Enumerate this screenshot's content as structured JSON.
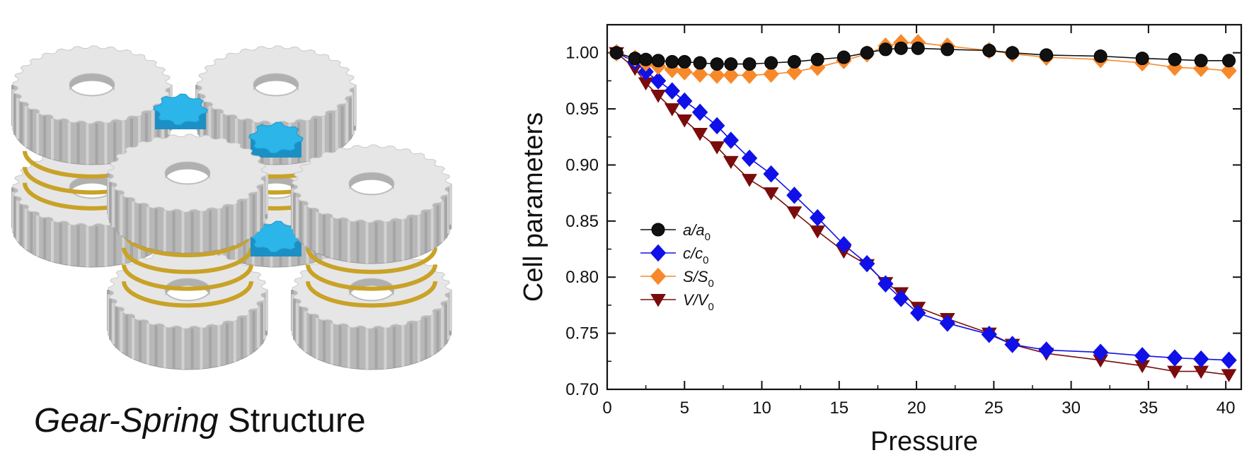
{
  "caption": {
    "italic_part": "Gear-Spring",
    "rest": " Structure"
  },
  "illustration": {
    "description_icon": "gear-spring-illustration-icon",
    "colors": {
      "gear": "#e6e6e6",
      "gear_shade": "#b8b8b8",
      "spring": "#c9a227",
      "connector": "#2bb5e8"
    }
  },
  "chart_data": {
    "type": "line",
    "xlabel": "Pressure",
    "ylabel": "Cell parameters",
    "xlim": [
      0,
      41
    ],
    "ylim": [
      0.7,
      1.025
    ],
    "xticks": [
      0,
      5,
      10,
      15,
      20,
      25,
      30,
      35,
      40
    ],
    "xtick_labels": [
      "0",
      "5",
      "10",
      "15",
      "20",
      "25",
      "30",
      "35",
      "40"
    ],
    "yticks": [
      0.7,
      0.75,
      0.8,
      0.85,
      0.9,
      0.95,
      1.0
    ],
    "ytick_labels": [
      "0.70",
      "0.75",
      "0.80",
      "0.85",
      "0.90",
      "0.95",
      "1.00"
    ],
    "grid": false,
    "legend_position": "left-middle",
    "series": [
      {
        "key": "a",
        "label_main": "a/a",
        "label_sub": "0",
        "color": "#111111",
        "marker": "circle",
        "x": [
          0.6,
          1.8,
          2.5,
          3.3,
          4.2,
          5.0,
          6.0,
          7.1,
          8.0,
          9.2,
          10.6,
          12.1,
          13.6,
          15.3,
          16.8,
          18.0,
          19.0,
          20.1,
          22.0,
          24.7,
          26.2,
          28.4,
          31.9,
          34.6,
          36.7,
          38.4,
          40.2
        ],
        "y": [
          1.0,
          0.995,
          0.994,
          0.993,
          0.992,
          0.992,
          0.991,
          0.99,
          0.99,
          0.99,
          0.991,
          0.992,
          0.994,
          0.996,
          1.0,
          1.003,
          1.004,
          1.004,
          1.003,
          1.002,
          1.0,
          0.998,
          0.997,
          0.995,
          0.994,
          0.993,
          0.993
        ]
      },
      {
        "key": "c",
        "label_main": "c/c",
        "label_sub": "0",
        "color": "#1010e8",
        "marker": "diamond",
        "x": [
          0.6,
          1.8,
          2.5,
          3.3,
          4.2,
          5.0,
          6.0,
          7.1,
          8.0,
          9.2,
          10.6,
          12.1,
          13.6,
          15.3,
          16.8,
          18.0,
          19.0,
          20.1,
          22.0,
          24.7,
          26.2,
          28.4,
          31.9,
          34.6,
          36.7,
          38.4,
          40.2
        ],
        "y": [
          1.0,
          0.992,
          0.983,
          0.975,
          0.966,
          0.957,
          0.947,
          0.935,
          0.922,
          0.906,
          0.892,
          0.873,
          0.853,
          0.829,
          0.812,
          0.794,
          0.781,
          0.768,
          0.759,
          0.749,
          0.74,
          0.735,
          0.733,
          0.73,
          0.728,
          0.727,
          0.726
        ]
      },
      {
        "key": "S",
        "label_main": "S/S",
        "label_sub": "0",
        "color": "#f7892a",
        "marker": "diamond",
        "x": [
          0.6,
          1.8,
          2.5,
          3.3,
          4.2,
          5.0,
          6.0,
          7.1,
          8.0,
          9.2,
          10.6,
          12.1,
          13.6,
          15.3,
          16.8,
          18.0,
          19.0,
          20.1,
          22.0,
          24.7,
          26.2,
          28.4,
          31.9,
          34.6,
          36.7,
          38.4,
          40.2
        ],
        "y": [
          1.0,
          0.995,
          0.991,
          0.988,
          0.985,
          0.983,
          0.981,
          0.98,
          0.98,
          0.98,
          0.981,
          0.983,
          0.987,
          0.993,
          0.999,
          1.006,
          1.009,
          1.009,
          1.006,
          1.002,
          0.999,
          0.996,
          0.994,
          0.991,
          0.987,
          0.986,
          0.984
        ]
      },
      {
        "key": "V",
        "label_main": "V/V",
        "label_sub": "0",
        "color": "#7a0c0c",
        "marker": "triangle-down",
        "x": [
          0.6,
          1.8,
          2.5,
          3.3,
          4.2,
          5.0,
          6.0,
          7.1,
          8.0,
          9.2,
          10.6,
          12.1,
          13.6,
          15.3,
          16.8,
          18.0,
          19.0,
          20.1,
          22.0,
          24.7,
          26.2,
          28.4,
          31.9,
          34.6,
          36.7,
          38.4,
          40.2
        ],
        "y": [
          1.0,
          0.986,
          0.973,
          0.962,
          0.95,
          0.94,
          0.928,
          0.916,
          0.903,
          0.887,
          0.875,
          0.858,
          0.841,
          0.823,
          0.811,
          0.795,
          0.786,
          0.773,
          0.763,
          0.75,
          0.74,
          0.732,
          0.726,
          0.721,
          0.716,
          0.716,
          0.713
        ]
      }
    ]
  }
}
